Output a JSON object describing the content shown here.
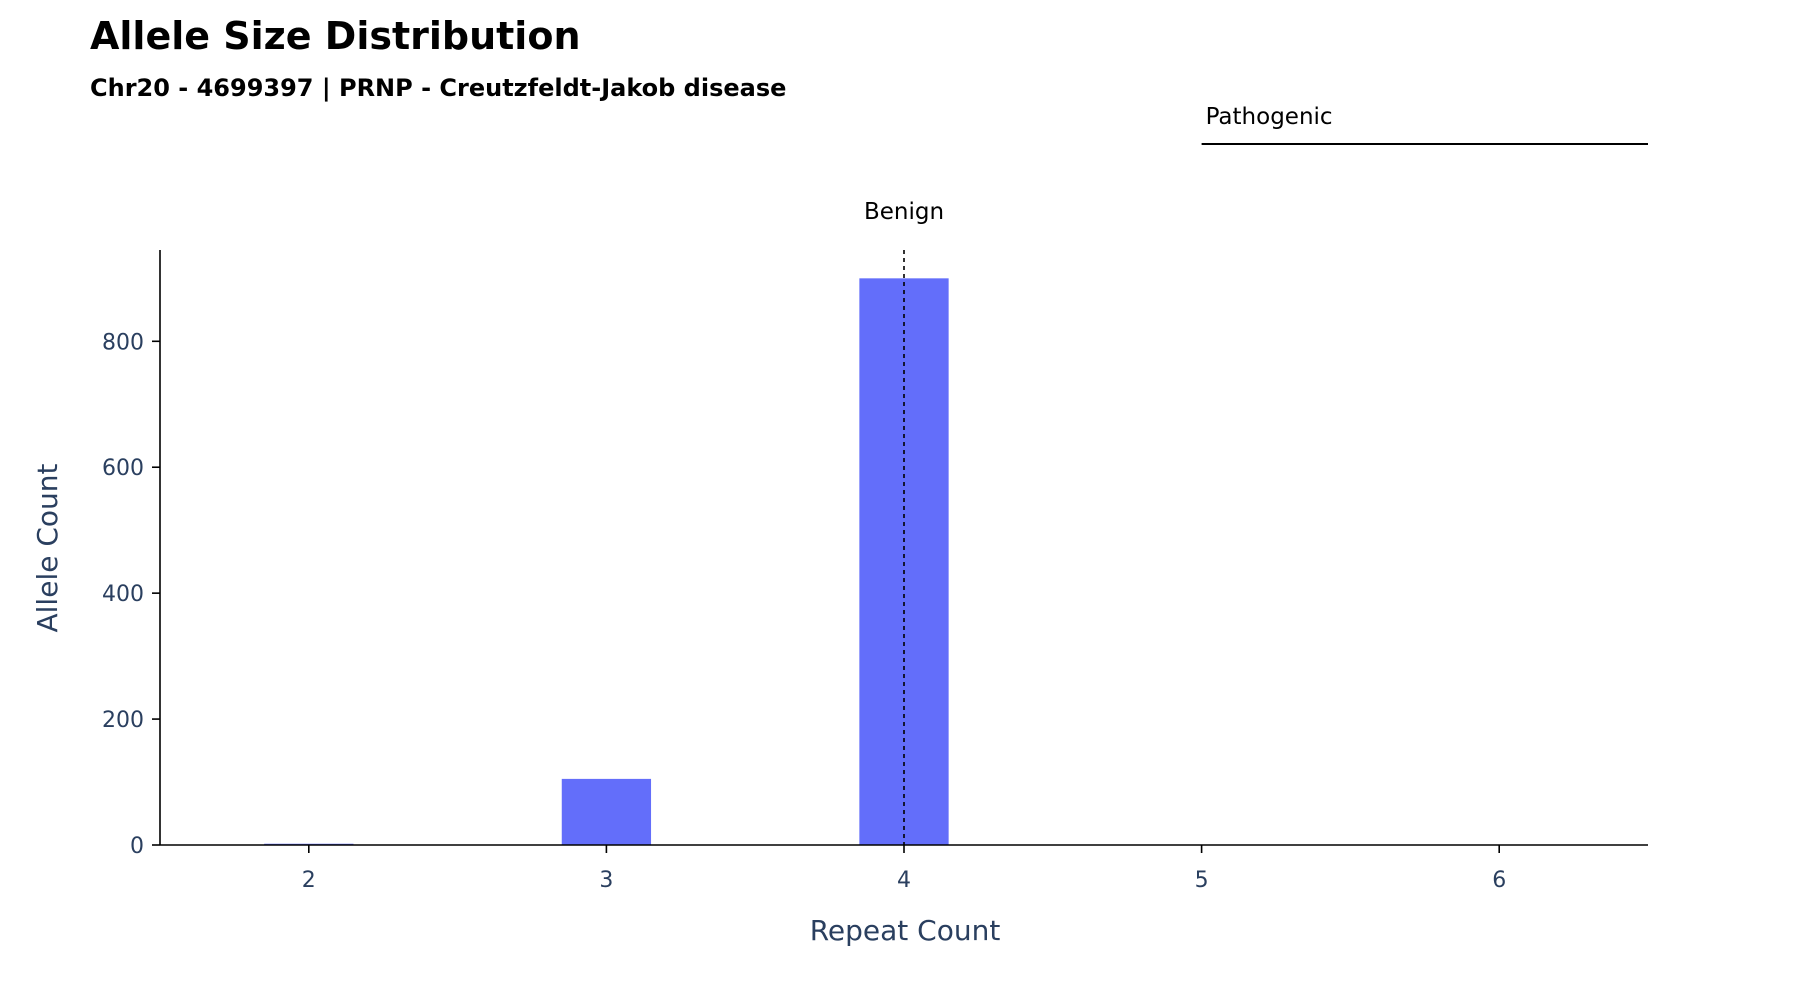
{
  "chart_data": {
    "type": "bar",
    "title": "Allele Size Distribution",
    "subtitle": "Chr20 - 4699397 | PRNP - Creutzfeldt-Jakob disease",
    "xlabel": "Repeat Count",
    "ylabel": "Allele Count",
    "categories": [
      2,
      3,
      4,
      5,
      6
    ],
    "values": [
      2,
      105,
      900,
      0,
      0
    ],
    "xlim": [
      1.5,
      6.5
    ],
    "ylim": [
      0,
      945
    ],
    "x_ticks": [
      "2",
      "3",
      "4",
      "5",
      "6"
    ],
    "y_ticks": [
      0,
      200,
      400,
      600,
      800
    ],
    "grid": false,
    "bar_color": "#636efa",
    "annotations": {
      "benign": {
        "label": "Benign",
        "x": 4,
        "style": "dotted-vertical-line"
      },
      "pathogenic": {
        "label": "Pathogenic",
        "x_start": 5,
        "x_end": 6.5,
        "style": "horizontal-line"
      }
    }
  }
}
